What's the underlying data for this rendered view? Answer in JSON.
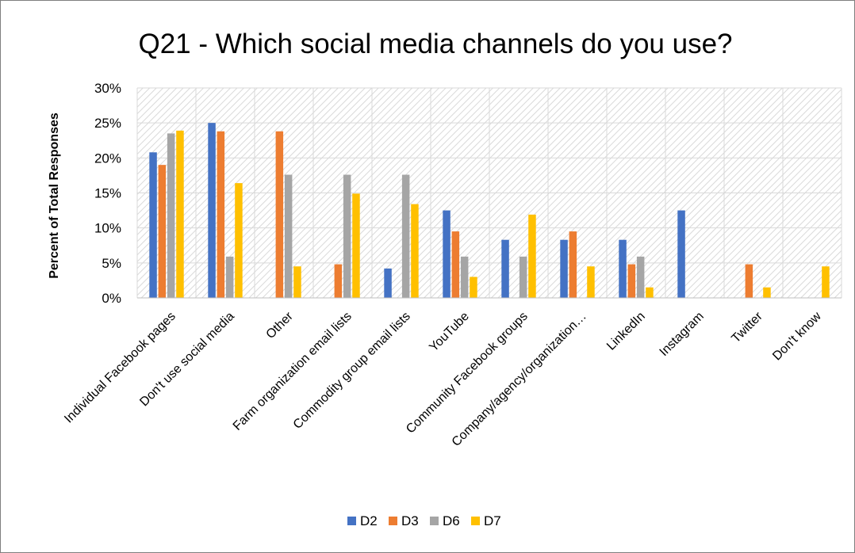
{
  "chart_data": {
    "type": "bar",
    "title": "Q21 - Which social media channels do you use?",
    "ylabel": "Percent of Total Responses",
    "xlabel": "",
    "ylim": [
      0,
      30
    ],
    "yticks": [
      "0%",
      "5%",
      "10%",
      "15%",
      "20%",
      "25%",
      "30%"
    ],
    "grid": true,
    "legend_position": "bottom",
    "categories": [
      "Individual Facebook pages",
      "Don't use social media",
      "Other",
      "Farm organization email lists",
      "Commodity group email lists",
      "YouTube",
      "Community Facebook groups",
      "Company/agency/organization…",
      "LinkedIn",
      "Instagram",
      "Twitter",
      "Don't know"
    ],
    "series": [
      {
        "name": "D2",
        "color": "#4472c4",
        "values": [
          20.8,
          25.0,
          0,
          0,
          4.2,
          12.5,
          8.3,
          8.3,
          8.3,
          12.5,
          0,
          0
        ]
      },
      {
        "name": "D3",
        "color": "#ed7d31",
        "values": [
          19.0,
          23.8,
          23.8,
          4.8,
          0,
          9.5,
          0,
          9.5,
          4.8,
          0,
          4.8,
          0
        ]
      },
      {
        "name": "D6",
        "color": "#a5a5a5",
        "values": [
          23.5,
          5.9,
          17.6,
          17.6,
          17.6,
          5.9,
          5.9,
          0,
          5.9,
          0,
          0,
          0
        ]
      },
      {
        "name": "D7",
        "color": "#ffc000",
        "values": [
          23.9,
          16.4,
          4.5,
          14.9,
          13.4,
          3.0,
          11.9,
          4.5,
          1.5,
          0,
          1.5,
          4.5
        ]
      }
    ]
  }
}
